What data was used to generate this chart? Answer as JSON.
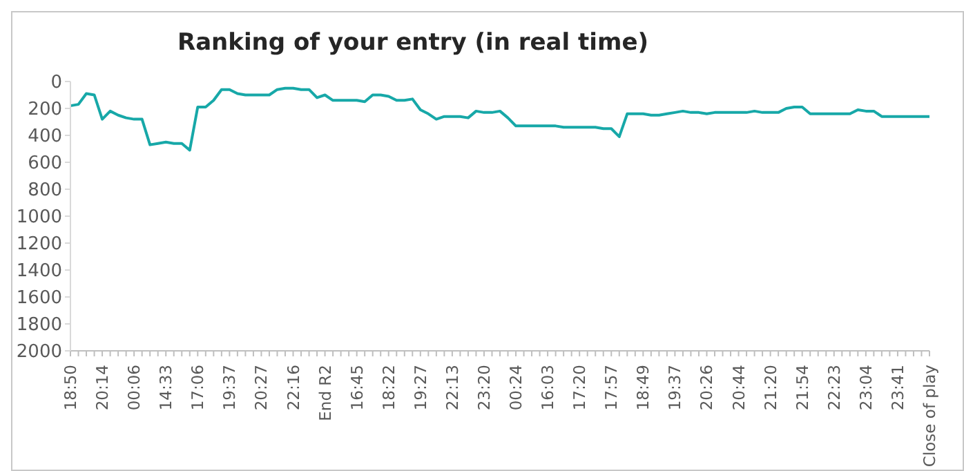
{
  "chart_data": {
    "type": "line",
    "title": "Ranking of your entry (in real time)",
    "categories": [
      "18:50",
      null,
      null,
      null,
      "20:14",
      null,
      null,
      null,
      "00:06",
      null,
      null,
      null,
      "14:33",
      null,
      null,
      null,
      "17:06",
      null,
      null,
      null,
      "19:37",
      null,
      null,
      null,
      "20:27",
      null,
      null,
      null,
      "22:16",
      null,
      null,
      null,
      "End R2",
      null,
      null,
      null,
      "16:45",
      null,
      null,
      null,
      "18:22",
      null,
      null,
      null,
      "19:27",
      null,
      null,
      null,
      "22:13",
      null,
      null,
      null,
      "23:20",
      null,
      null,
      null,
      "00:24",
      null,
      null,
      null,
      "16:03",
      null,
      null,
      null,
      "17:20",
      null,
      null,
      null,
      "17:57",
      null,
      null,
      null,
      "18:49",
      null,
      null,
      null,
      "19:37",
      null,
      null,
      null,
      "20:26",
      null,
      null,
      null,
      "20:44",
      null,
      null,
      null,
      "21:20",
      null,
      null,
      null,
      "21:54",
      null,
      null,
      null,
      "22:23",
      null,
      null,
      null,
      "23:04",
      null,
      null,
      null,
      "23:41",
      null,
      null,
      null,
      "Close of play"
    ],
    "series": [
      {
        "color": "#17a8a8",
        "values": [
          180,
          170,
          90,
          100,
          280,
          220,
          250,
          270,
          280,
          280,
          470,
          460,
          450,
          460,
          460,
          510,
          190,
          190,
          140,
          60,
          60,
          90,
          100,
          100,
          100,
          100,
          60,
          50,
          50,
          60,
          60,
          120,
          100,
          140,
          140,
          140,
          140,
          150,
          100,
          100,
          110,
          140,
          140,
          130,
          210,
          240,
          280,
          260,
          260,
          260,
          270,
          220,
          230,
          230,
          220,
          270,
          330,
          330,
          330,
          330,
          330,
          330,
          340,
          340,
          340,
          340,
          340,
          350,
          350,
          410,
          240,
          240,
          240,
          250,
          250,
          240,
          230,
          220,
          230,
          230,
          240,
          230,
          230,
          230,
          230,
          230,
          220,
          230,
          230,
          230,
          200,
          190,
          190,
          240,
          240,
          240,
          240,
          240,
          240,
          210,
          220,
          220,
          260,
          260,
          260,
          260,
          260,
          260,
          260
        ]
      }
    ],
    "ylim": [
      2000,
      0
    ],
    "yticks": [
      0,
      200,
      400,
      600,
      800,
      1000,
      1200,
      1400,
      1600,
      1800,
      2000
    ],
    "grid": false,
    "legend": false,
    "marker": "none",
    "line_style": "solid"
  }
}
